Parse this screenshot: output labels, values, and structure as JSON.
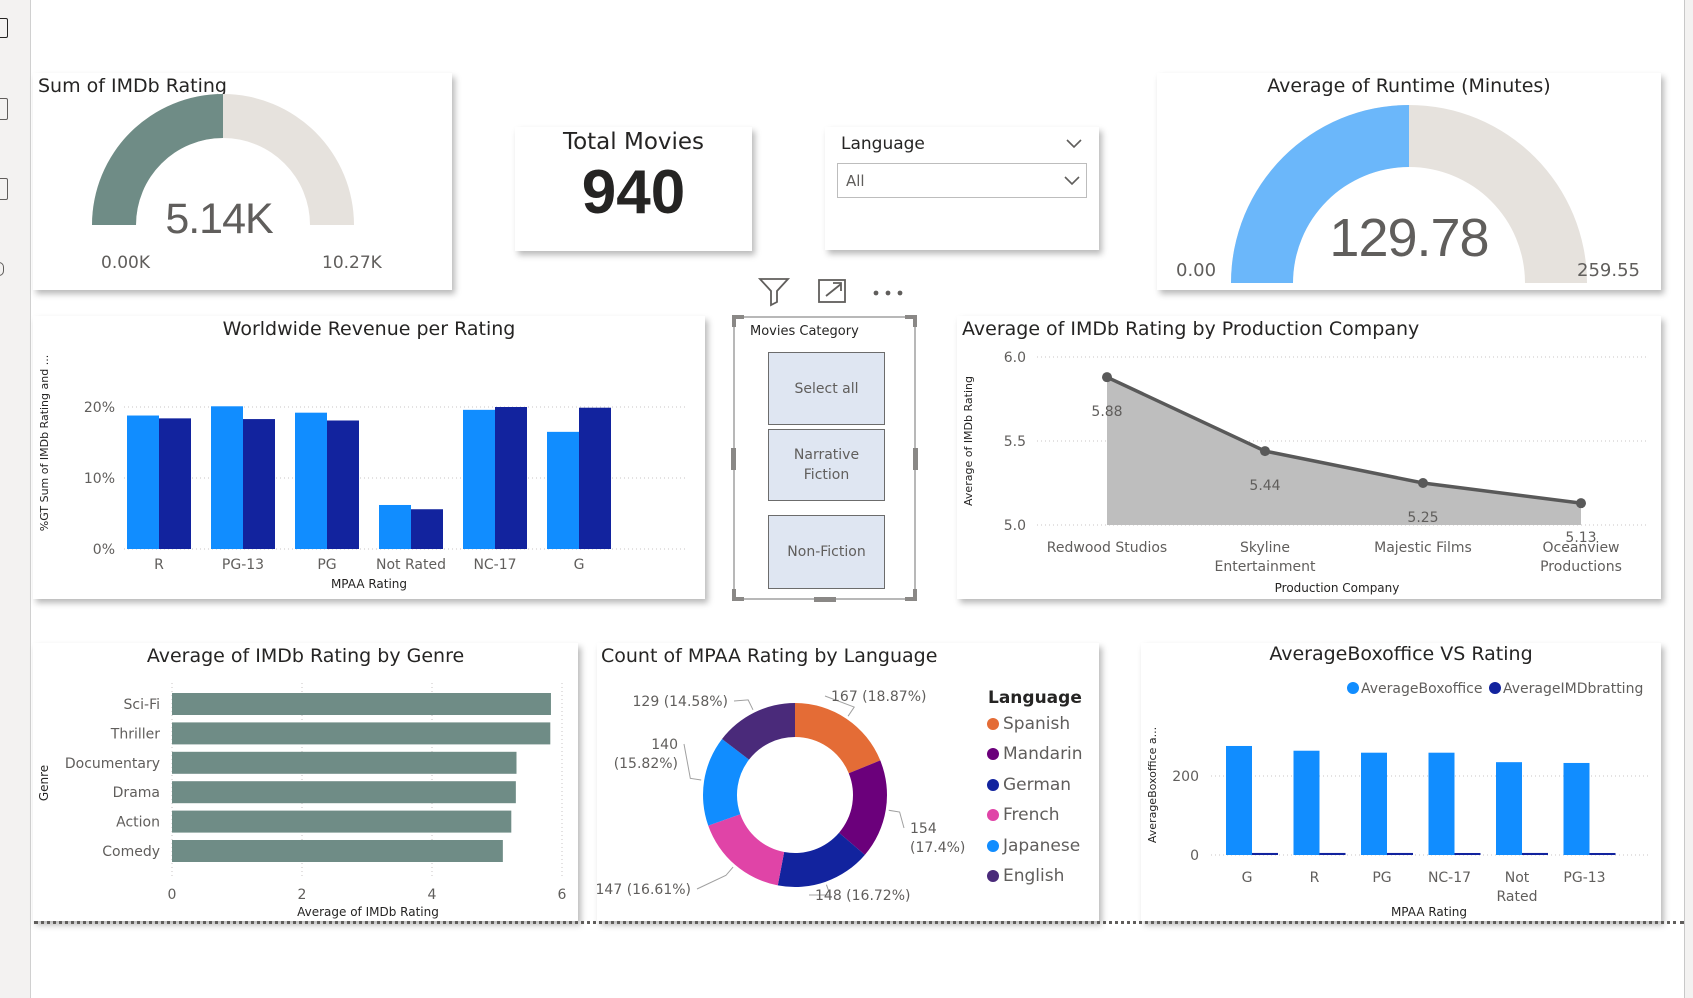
{
  "gauge_imdb": {
    "title": "Sum of IMDb Rating",
    "value_label": "5.14K",
    "min_label": "0.00K",
    "max_label": "10.27K",
    "fill_fraction": 0.5,
    "fill_color": "#6f8c86",
    "track_color": "#e6e2dd"
  },
  "total_movies": {
    "title": "Total Movies",
    "value": "940"
  },
  "language_slicer": {
    "title": "Language",
    "selected": "All"
  },
  "gauge_runtime": {
    "title": "Average of Runtime (Minutes)",
    "value_label": "129.78",
    "min_label": "0.00",
    "max_label": "259.55",
    "fill_fraction": 0.5,
    "fill_color": "#6bb7fa",
    "track_color": "#e6e2dd"
  },
  "visual_header": {
    "icons": [
      "filter-icon",
      "focus-mode-icon",
      "more-options-icon"
    ]
  },
  "category_slicer": {
    "title": "Movies Category",
    "options": [
      "Select all",
      "Narrative\nFiction",
      "Non-Fiction"
    ]
  },
  "revenue_chart": {
    "title": "Worldwide Revenue per Rating",
    "xlabel": "MPAA Rating",
    "ylabel": "%GT Sum of IMDb Rating and ...",
    "yticks": [
      "0%",
      "10%",
      "20%"
    ]
  },
  "company_chart": {
    "title": "Average of IMDb Rating by Production Company",
    "xlabel": "Production Company",
    "ylabel": "Average of IMDb Rating",
    "yticks": [
      "5.0",
      "5.5",
      "6.0"
    ],
    "categories": [
      "Redwood Studios",
      "Skyline\nEntertainment",
      "Majestic Films",
      "Oceanview\nProductions"
    ],
    "value_labels": [
      "5.88",
      "5.44",
      "5.25",
      "5.13"
    ]
  },
  "genre_chart": {
    "title": "Average of IMDb Rating by Genre",
    "xlabel": "Average of IMDb Rating",
    "ylabel": "Genre",
    "xticks": [
      "0",
      "2",
      "4",
      "6"
    ],
    "categories": [
      "Sci-Fi",
      "Thriller",
      "Documentary",
      "Drama",
      "Action",
      "Comedy"
    ]
  },
  "donut_chart": {
    "title": "Count of MPAA Rating by Language",
    "legend_title": "Language",
    "legend": [
      "Spanish",
      "Mandarin",
      "German",
      "French",
      "Japanese",
      "English"
    ],
    "colors": [
      "#e46c36",
      "#6b007b",
      "#12239e",
      "#e044a7",
      "#118dff",
      "#4a2a7a"
    ],
    "slice_labels": [
      "167 (18.87%)",
      "154\n(17.4%)",
      "148 (16.72%)",
      "147 (16.61%)",
      "140\n(15.82%)",
      "129 (14.58%)"
    ]
  },
  "boxoffice_chart": {
    "title": "AverageBoxoffice VS Rating",
    "xlabel": "MPAA Rating",
    "ylabel": "AverageBoxoffice a...",
    "legend": [
      "AverageBoxoffice",
      "AverageIMDbratting"
    ],
    "yticks": [
      "0",
      "200"
    ],
    "categories": [
      "G",
      "R",
      "PG",
      "NC-17",
      "Not\nRated",
      "PG-13"
    ]
  },
  "chart_data": [
    {
      "type": "bar",
      "title": "Worldwide Revenue per Rating",
      "xlabel": "MPAA Rating",
      "ylabel": "%GT Sum of IMDb Rating and ...",
      "ylim": [
        0,
        23
      ],
      "categories": [
        "R",
        "PG-13",
        "PG",
        "Not Rated",
        "NC-17",
        "G"
      ],
      "series": [
        {
          "values": [
            18.8,
            20.1,
            19.2,
            6.2,
            19.6,
            16.5
          ],
          "color": "#118dff"
        },
        {
          "values": [
            18.4,
            18.3,
            18.1,
            5.6,
            20.0,
            19.9
          ],
          "color": "#12239e"
        }
      ]
    },
    {
      "type": "area",
      "title": "Average of IMDb Rating by Production Company",
      "xlabel": "Production Company",
      "ylabel": "Average of IMDb Rating",
      "ylim": [
        5.0,
        6.0
      ],
      "categories": [
        "Redwood Studios",
        "Skyline Entertainment",
        "Majestic Films",
        "Oceanview Productions"
      ],
      "values": [
        5.88,
        5.44,
        5.25,
        5.13
      ]
    },
    {
      "type": "bar",
      "orientation": "horizontal",
      "title": "Average of IMDb Rating by Genre",
      "xlabel": "Average of IMDb Rating",
      "ylabel": "Genre",
      "xlim": [
        0,
        6
      ],
      "categories": [
        "Sci-Fi",
        "Thriller",
        "Documentary",
        "Drama",
        "Action",
        "Comedy"
      ],
      "values": [
        5.83,
        5.82,
        5.3,
        5.29,
        5.22,
        5.09
      ]
    },
    {
      "type": "pie",
      "title": "Count of MPAA Rating by Language",
      "categories": [
        "Spanish",
        "Mandarin",
        "German",
        "French",
        "Japanese",
        "English"
      ],
      "values": [
        167,
        154,
        148,
        147,
        140,
        129
      ]
    },
    {
      "type": "bar",
      "title": "AverageBoxoffice VS Rating",
      "xlabel": "MPAA Rating",
      "ylabel": "AverageBoxoffice a...",
      "ylim": [
        0,
        300
      ],
      "categories": [
        "G",
        "R",
        "PG",
        "NC-17",
        "Not Rated",
        "PG-13"
      ],
      "series": [
        {
          "name": "AverageBoxoffice",
          "values": [
            276,
            264,
            259,
            259,
            235,
            233
          ],
          "color": "#118dff"
        },
        {
          "name": "AverageIMDbratting",
          "values": [
            5.2,
            5.2,
            5.2,
            5.1,
            5.2,
            5.1
          ],
          "color": "#12239e"
        }
      ]
    }
  ]
}
